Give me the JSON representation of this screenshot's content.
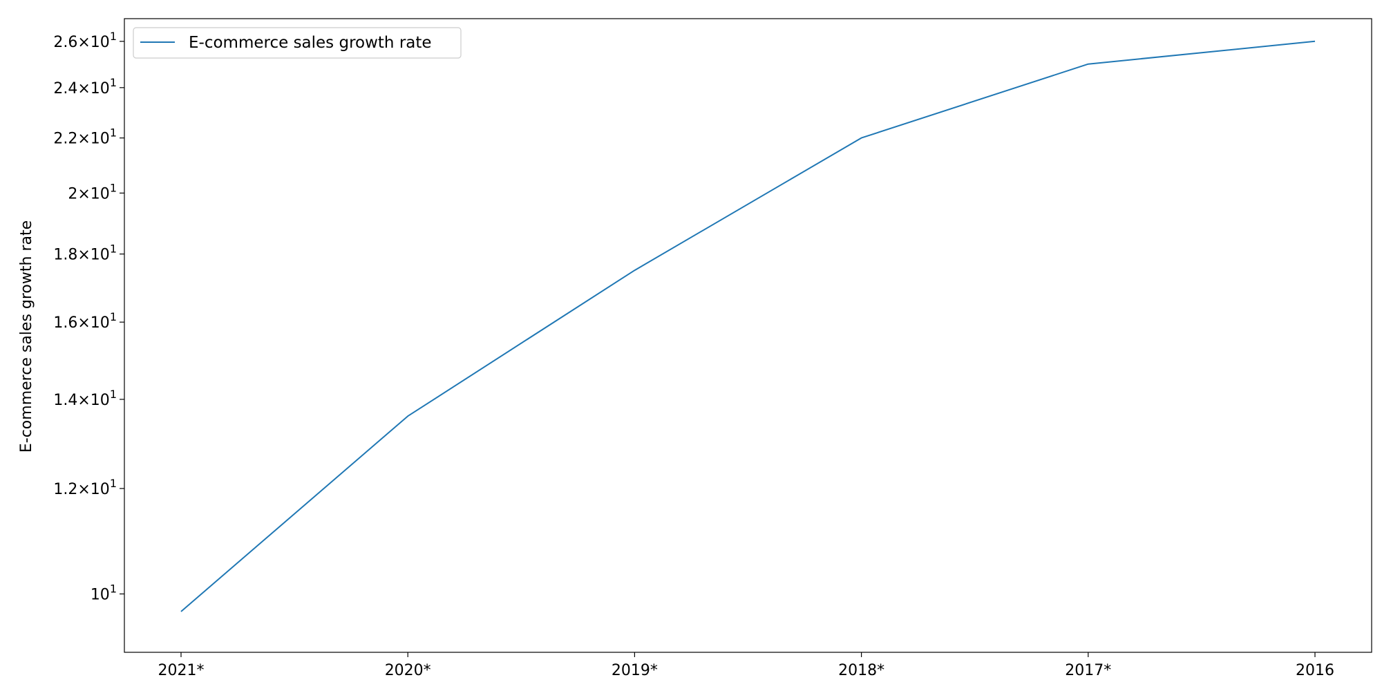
{
  "chart_data": {
    "type": "line",
    "categories": [
      "2021*",
      "2020*",
      "2019*",
      "2018*",
      "2017*",
      "2016"
    ],
    "series": [
      {
        "name": "E-commerce sales growth rate",
        "values": [
          9.7,
          13.6,
          17.5,
          22,
          25,
          26
        ],
        "color": "#1f77b4"
      }
    ],
    "xlabel": "",
    "ylabel": "E-commerce sales growth rate",
    "yscale": "log",
    "ylim": [
      9.04,
      27.04
    ],
    "yticks": [
      {
        "value": 10,
        "mantissa": "",
        "exponent": "1"
      },
      {
        "value": 12,
        "mantissa": "1.2",
        "exponent": "1"
      },
      {
        "value": 14,
        "mantissa": "1.4",
        "exponent": "1"
      },
      {
        "value": 16,
        "mantissa": "1.6",
        "exponent": "1"
      },
      {
        "value": 18,
        "mantissa": "1.8",
        "exponent": "1"
      },
      {
        "value": 20,
        "mantissa": "2",
        "exponent": "1"
      },
      {
        "value": 22,
        "mantissa": "2.2",
        "exponent": "1"
      },
      {
        "value": 24,
        "mantissa": "2.4",
        "exponent": "1"
      },
      {
        "value": 26,
        "mantissa": "2.6",
        "exponent": "1"
      }
    ],
    "grid": false,
    "legend_position": "upper-left"
  }
}
